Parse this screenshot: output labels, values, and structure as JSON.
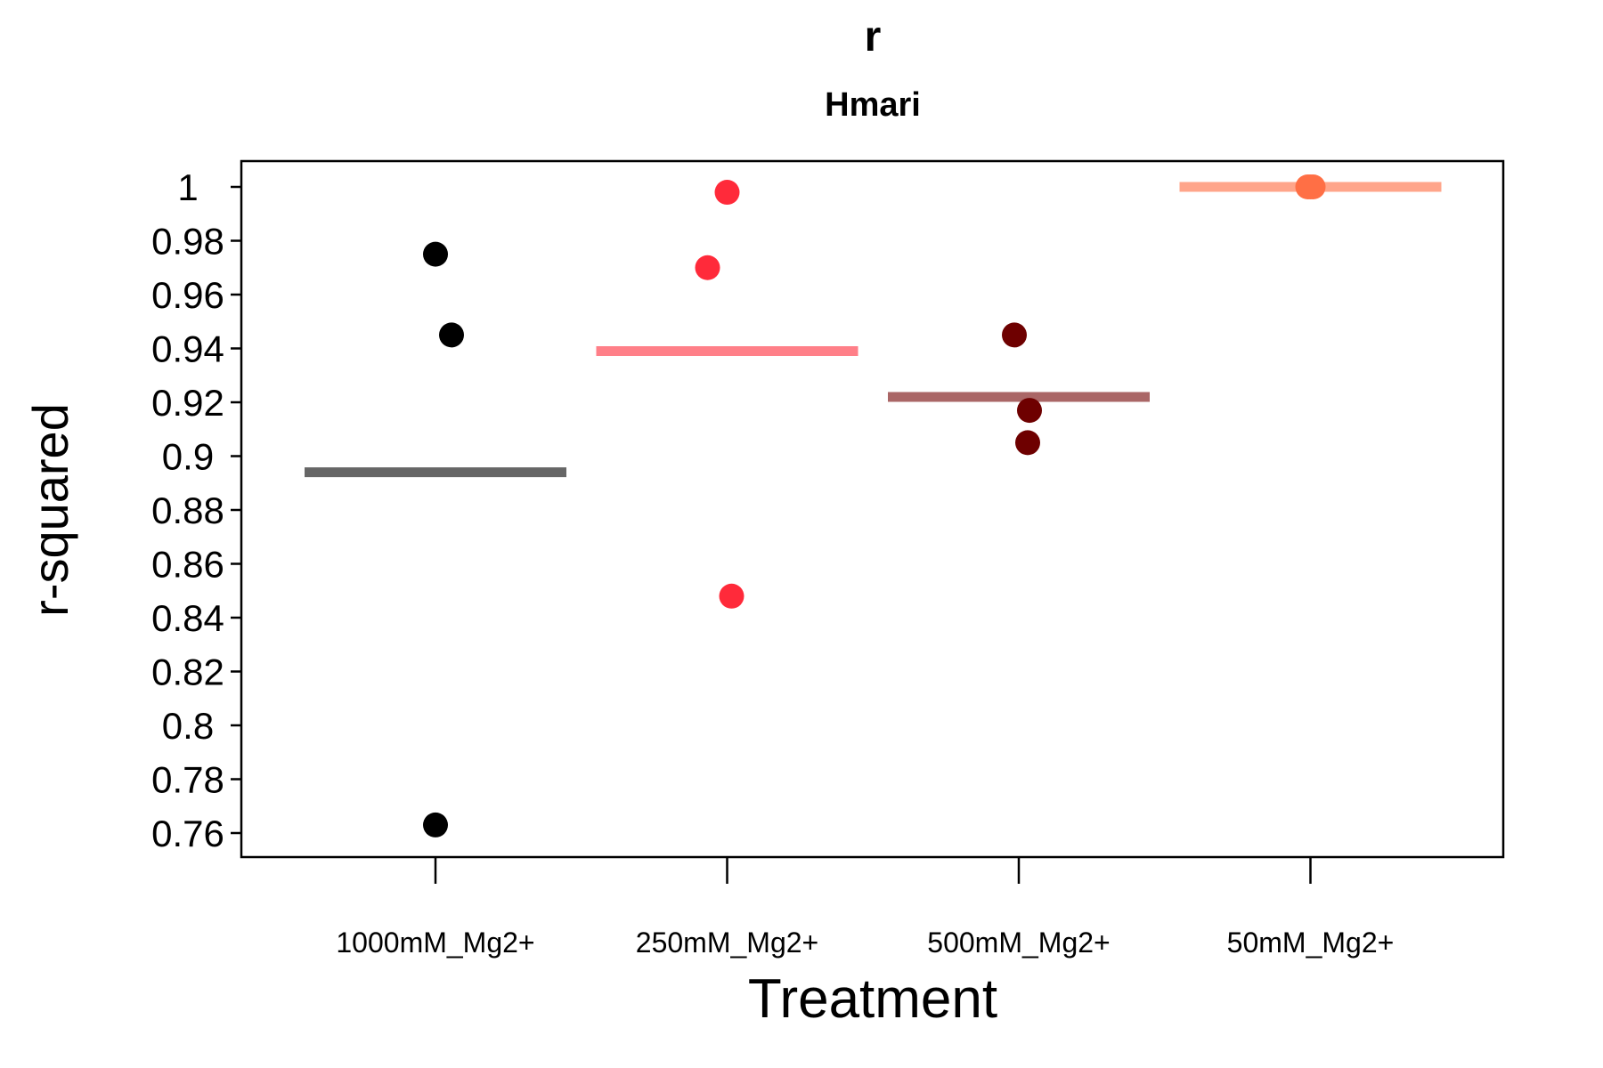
{
  "chart_data": {
    "type": "scatter",
    "title": "r",
    "subtitle": "Hmari",
    "xlabel": "Treatment",
    "ylabel": "r-squared",
    "ylim": [
      0.75,
      1.01
    ],
    "yticks": [
      0.76,
      0.78,
      0.8,
      0.82,
      0.84,
      0.86,
      0.88,
      0.9,
      0.92,
      0.94,
      0.96,
      0.98,
      1
    ],
    "ytick_labels": [
      "0.76",
      "0.78",
      "0.8",
      "0.82",
      "0.84",
      "0.86",
      "0.88",
      "0.9",
      "0.92",
      "0.94",
      "0.96",
      "0.98",
      "1"
    ],
    "categories": [
      "1000mM_Mg2+",
      "250mM_Mg2+",
      "500mM_Mg2+",
      "50mM_Mg2+"
    ],
    "grid": false,
    "series": [
      {
        "category": "1000mM_Mg2+",
        "color": "#000000",
        "mean_color": "#666666",
        "values": [
          0.975,
          0.945,
          0.763
        ],
        "mean": 0.894
      },
      {
        "category": "250mM_Mg2+",
        "color": "#ff2a3a",
        "mean_color": "#ff7f88",
        "values": [
          0.998,
          0.97,
          0.848
        ],
        "mean": 0.939
      },
      {
        "category": "500mM_Mg2+",
        "color": "#6e0000",
        "mean_color": "#aa6666",
        "values": [
          0.945,
          0.917,
          0.905
        ],
        "mean": 0.922
      },
      {
        "category": "50mM_Mg2+",
        "color": "#ff6f45",
        "mean_color": "#ffa58a",
        "values": [
          1.0,
          1.0,
          1.0
        ],
        "mean": 1.0
      }
    ]
  }
}
